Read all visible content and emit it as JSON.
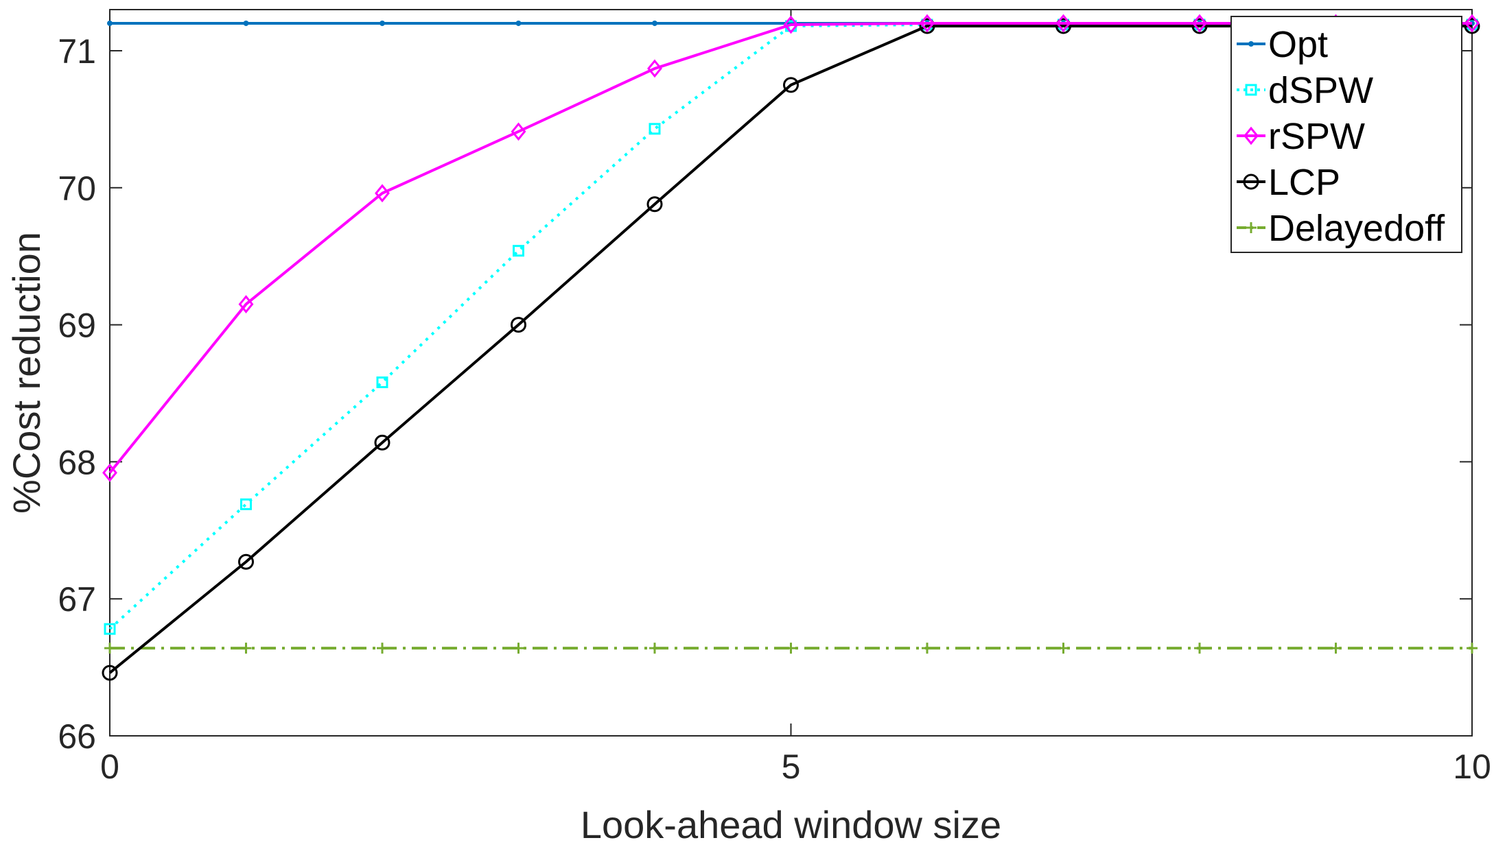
{
  "chart_data": {
    "type": "line",
    "xlabel": "Look-ahead window size",
    "ylabel": "%Cost reduction",
    "xlim": [
      0,
      10
    ],
    "ylim": [
      66,
      71.3
    ],
    "xticks": [
      0,
      5,
      10
    ],
    "yticks": [
      66,
      67,
      68,
      69,
      70,
      71
    ],
    "xtick_labels": [
      "0",
      "5",
      "10"
    ],
    "ytick_labels": [
      "66",
      "67",
      "68",
      "69",
      "70",
      "71"
    ],
    "grid": false,
    "legend_position": "top-right",
    "x": [
      0,
      1,
      2,
      3,
      4,
      5,
      6,
      7,
      8,
      9,
      10
    ],
    "series": [
      {
        "name": "Opt",
        "color": "#0072BD",
        "style": "solid",
        "marker": "dot",
        "values": [
          71.2,
          71.2,
          71.2,
          71.2,
          71.2,
          71.2,
          71.2,
          71.2,
          71.2,
          71.2,
          71.2
        ]
      },
      {
        "name": "dSPW",
        "color": "#00FFFF",
        "style": "dotted",
        "marker": "square",
        "values": [
          66.78,
          67.69,
          68.58,
          69.54,
          70.43,
          71.18,
          71.19,
          71.19,
          71.19,
          71.19,
          71.19
        ]
      },
      {
        "name": "rSPW",
        "color": "#FF00FF",
        "style": "solid",
        "marker": "diamond",
        "values": [
          67.92,
          69.15,
          69.96,
          70.41,
          70.87,
          71.19,
          71.2,
          71.2,
          71.2,
          71.2,
          71.2
        ]
      },
      {
        "name": "LCP",
        "color": "#000000",
        "style": "solid",
        "marker": "circle",
        "values": [
          66.46,
          67.27,
          68.14,
          69.0,
          69.88,
          70.75,
          71.18,
          71.18,
          71.18,
          71.18,
          71.18
        ]
      },
      {
        "name": "Delayedoff",
        "color": "#77AC30",
        "style": "dashdot",
        "marker": "plus",
        "values": [
          66.64,
          66.64,
          66.64,
          66.64,
          66.64,
          66.64,
          66.64,
          66.64,
          66.64,
          66.64,
          66.64
        ]
      }
    ]
  }
}
